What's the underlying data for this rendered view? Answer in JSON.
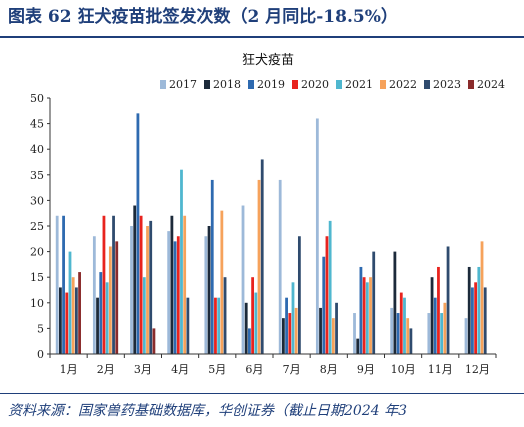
{
  "header": {
    "figure_title": "图表 62  狂犬疫苗批签发次数（2 月同比-18.5%）"
  },
  "footer": {
    "source_text": "资料来源：国家兽药基础数据库，华创证券（截止日期2024 年3"
  },
  "chart_data": {
    "type": "bar",
    "title": "狂犬疫苗",
    "categories": [
      "1月",
      "2月",
      "3月",
      "4月",
      "5月",
      "6月",
      "7月",
      "8月",
      "9月",
      "10月",
      "11月",
      "12月"
    ],
    "ylim": [
      0,
      50
    ],
    "yticks": [
      0,
      5,
      10,
      15,
      20,
      25,
      30,
      35,
      40,
      45,
      50
    ],
    "grid": false,
    "legend_position": "top",
    "series": [
      {
        "name": "2017",
        "color": "#9db9d9",
        "values": [
          27,
          23,
          25,
          24,
          23,
          29,
          34,
          46,
          8,
          9,
          8,
          7
        ]
      },
      {
        "name": "2018",
        "color": "#1c2a3a",
        "values": [
          13,
          11,
          29,
          27,
          25,
          10,
          7,
          9,
          3,
          20,
          15,
          17
        ]
      },
      {
        "name": "2019",
        "color": "#2e6ab0",
        "values": [
          27,
          16,
          47,
          22,
          34,
          5,
          11,
          19,
          17,
          8,
          11,
          13
        ]
      },
      {
        "name": "2020",
        "color": "#e8231e",
        "values": [
          12,
          27,
          27,
          23,
          11,
          15,
          8,
          23,
          15,
          12,
          17,
          14
        ]
      },
      {
        "name": "2021",
        "color": "#4fb7cf",
        "values": [
          20,
          14,
          15,
          36,
          11,
          12,
          14,
          26,
          14,
          11,
          8,
          17
        ]
      },
      {
        "name": "2022",
        "color": "#f6a25b",
        "values": [
          15,
          21,
          25,
          27,
          28,
          34,
          9,
          7,
          15,
          7,
          10,
          22
        ]
      },
      {
        "name": "2023",
        "color": "#2f4b6e",
        "values": [
          13,
          27,
          26,
          11,
          15,
          38,
          23,
          10,
          20,
          5,
          21,
          13
        ]
      },
      {
        "name": "2024",
        "color": "#8a2b2b",
        "values": [
          16,
          22,
          5,
          null,
          null,
          null,
          null,
          null,
          null,
          null,
          null,
          null
        ]
      }
    ]
  }
}
